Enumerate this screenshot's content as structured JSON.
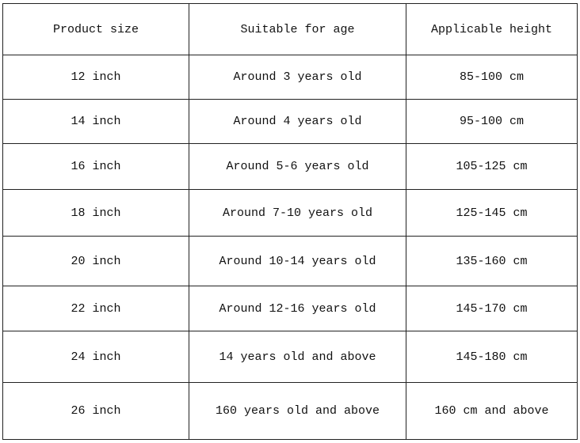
{
  "table": {
    "headers": [
      "Product size",
      "Suitable for age",
      "Applicable height"
    ],
    "rows": [
      [
        "12 inch",
        "Around 3 years old",
        "85-100 cm"
      ],
      [
        "14 inch",
        "Around 4 years old",
        "95-100 cm"
      ],
      [
        "16 inch",
        "Around 5-6 years old",
        "105-125 cm"
      ],
      [
        "18 inch",
        "Around 7-10 years old",
        "125-145 cm"
      ],
      [
        "20 inch",
        "Around 10-14 years old",
        "135-160 cm"
      ],
      [
        "22 inch",
        "Around 12-16 years old",
        "145-170 cm"
      ],
      [
        "24 inch",
        "14 years old and above",
        "145-180 cm"
      ],
      [
        "26 inch",
        "160 years old and above",
        "160 cm and above"
      ]
    ]
  }
}
